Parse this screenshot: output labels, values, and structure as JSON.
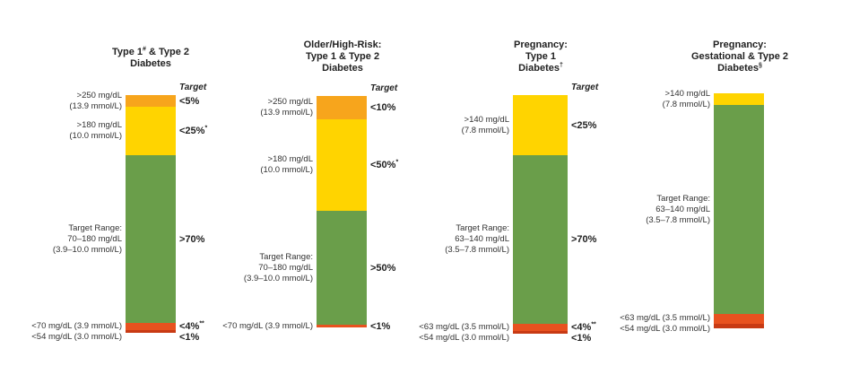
{
  "chart_data": [
    {
      "type": "bar",
      "title": "Type 1",
      "title_mark": "#",
      "title_rest": "& Type 2",
      "title_line2": "Diabetes",
      "target_header": "Target",
      "segments": [
        {
          "band": ">250",
          "share": 5,
          "color": "#F7A51C",
          "label": [
            ">250 mg/dL",
            "(13.9 mmol/L)"
          ],
          "target": "<5%",
          "target_mark": ""
        },
        {
          "band": "181-250",
          "share": 20,
          "color": "#FFD400",
          "label": [
            ">180 mg/dL",
            "(10.0 mmol/L)"
          ],
          "target": "<25%",
          "target_mark": "*"
        },
        {
          "band": "70-180",
          "share": 70,
          "color": "#6A9E4A",
          "label": [
            "Target Range:",
            "70–180 mg/dL",
            "(3.9–10.0 mmol/L)"
          ],
          "target": ">70%",
          "target_mark": ""
        },
        {
          "band": "54-69",
          "share": 3,
          "color": "#E8521F",
          "label": [
            "<70 mg/dL (3.9 mmol/L)"
          ],
          "target": "<4%",
          "target_mark": "**"
        },
        {
          "band": "<54",
          "share": 1,
          "color": "#C83A14",
          "label": [
            "<54 mg/dL (3.0 mmol/L)"
          ],
          "target": "<1%",
          "target_mark": ""
        }
      ]
    },
    {
      "type": "bar",
      "title": "Older/High-Risk:",
      "title_mark": "",
      "title_rest": "Type 1 & Type 2",
      "title_line2": "Diabetes",
      "target_header": "Target",
      "segments": [
        {
          "band": ">250",
          "share": 10,
          "color": "#F7A51C",
          "label": [
            ">250 mg/dL",
            "(13.9 mmol/L)"
          ],
          "target": "<10%",
          "target_mark": ""
        },
        {
          "band": "181-250",
          "share": 40,
          "color": "#FFD400",
          "label": [
            ">180 mg/dL",
            "(10.0 mmol/L)"
          ],
          "target": "<50%",
          "target_mark": "*"
        },
        {
          "band": "70-180",
          "share": 50,
          "color": "#6A9E4A",
          "label": [
            "Target Range:",
            "70–180 mg/dL",
            "(3.9–10.0 mmol/L)"
          ],
          "target": ">50%",
          "target_mark": ""
        },
        {
          "band": "<70",
          "share": 1,
          "color": "#E8521F",
          "label": [
            "<70 mg/dL (3.9 mmol/L)"
          ],
          "target": "<1%",
          "target_mark": ""
        }
      ]
    },
    {
      "type": "bar",
      "title": "Pregnancy:",
      "title_mark": "",
      "title_rest": "Type 1",
      "title_line2": "Diabetes",
      "title_line2_mark": "†",
      "target_header": "Target",
      "segments": [
        {
          "band": ">140",
          "share": 25,
          "color": "#FFD400",
          "label": [
            ">140 mg/dL",
            "(7.8 mmol/L)"
          ],
          "target": "<25%",
          "target_mark": ""
        },
        {
          "band": "63-140",
          "share": 70,
          "color": "#6A9E4A",
          "label": [
            "Target Range:",
            "63–140 mg/dL",
            "(3.5–7.8 mmol/L)"
          ],
          "target": ">70%",
          "target_mark": ""
        },
        {
          "band": "54-62",
          "share": 3,
          "color": "#E8521F",
          "label": [
            "<63 mg/dL (3.5 mmol/L)"
          ],
          "target": "<4%",
          "target_mark": "**"
        },
        {
          "band": "<54",
          "share": 1,
          "color": "#C83A14",
          "label": [
            "<54 mg/dL (3.0 mmol/L)"
          ],
          "target": "<1%",
          "target_mark": ""
        }
      ]
    },
    {
      "type": "bar",
      "title": "Pregnancy:",
      "title_mark": "",
      "title_rest": "Gestational & Type 2",
      "title_line2": "Diabetes",
      "title_line2_mark": "§",
      "target_header": "",
      "segments": [
        {
          "band": ">140",
          "share": 5,
          "color": "#FFD400",
          "label": [
            ">140 mg/dL",
            "(7.8 mmol/L)"
          ],
          "target": "",
          "target_mark": ""
        },
        {
          "band": "63-140",
          "share": 88,
          "color": "#6A9E4A",
          "label": [
            "Target Range:",
            "63–140 mg/dL",
            "(3.5–7.8 mmol/L)"
          ],
          "target": "",
          "target_mark": ""
        },
        {
          "band": "54-62",
          "share": 4,
          "color": "#E8521F",
          "label": [
            "<63 mg/dL (3.5 mmol/L)"
          ],
          "target": "",
          "target_mark": ""
        },
        {
          "band": "<54",
          "share": 2,
          "color": "#C83A14",
          "label": [
            "<54 mg/dL (3.0 mmol/L)"
          ],
          "target": "",
          "target_mark": ""
        }
      ]
    }
  ]
}
